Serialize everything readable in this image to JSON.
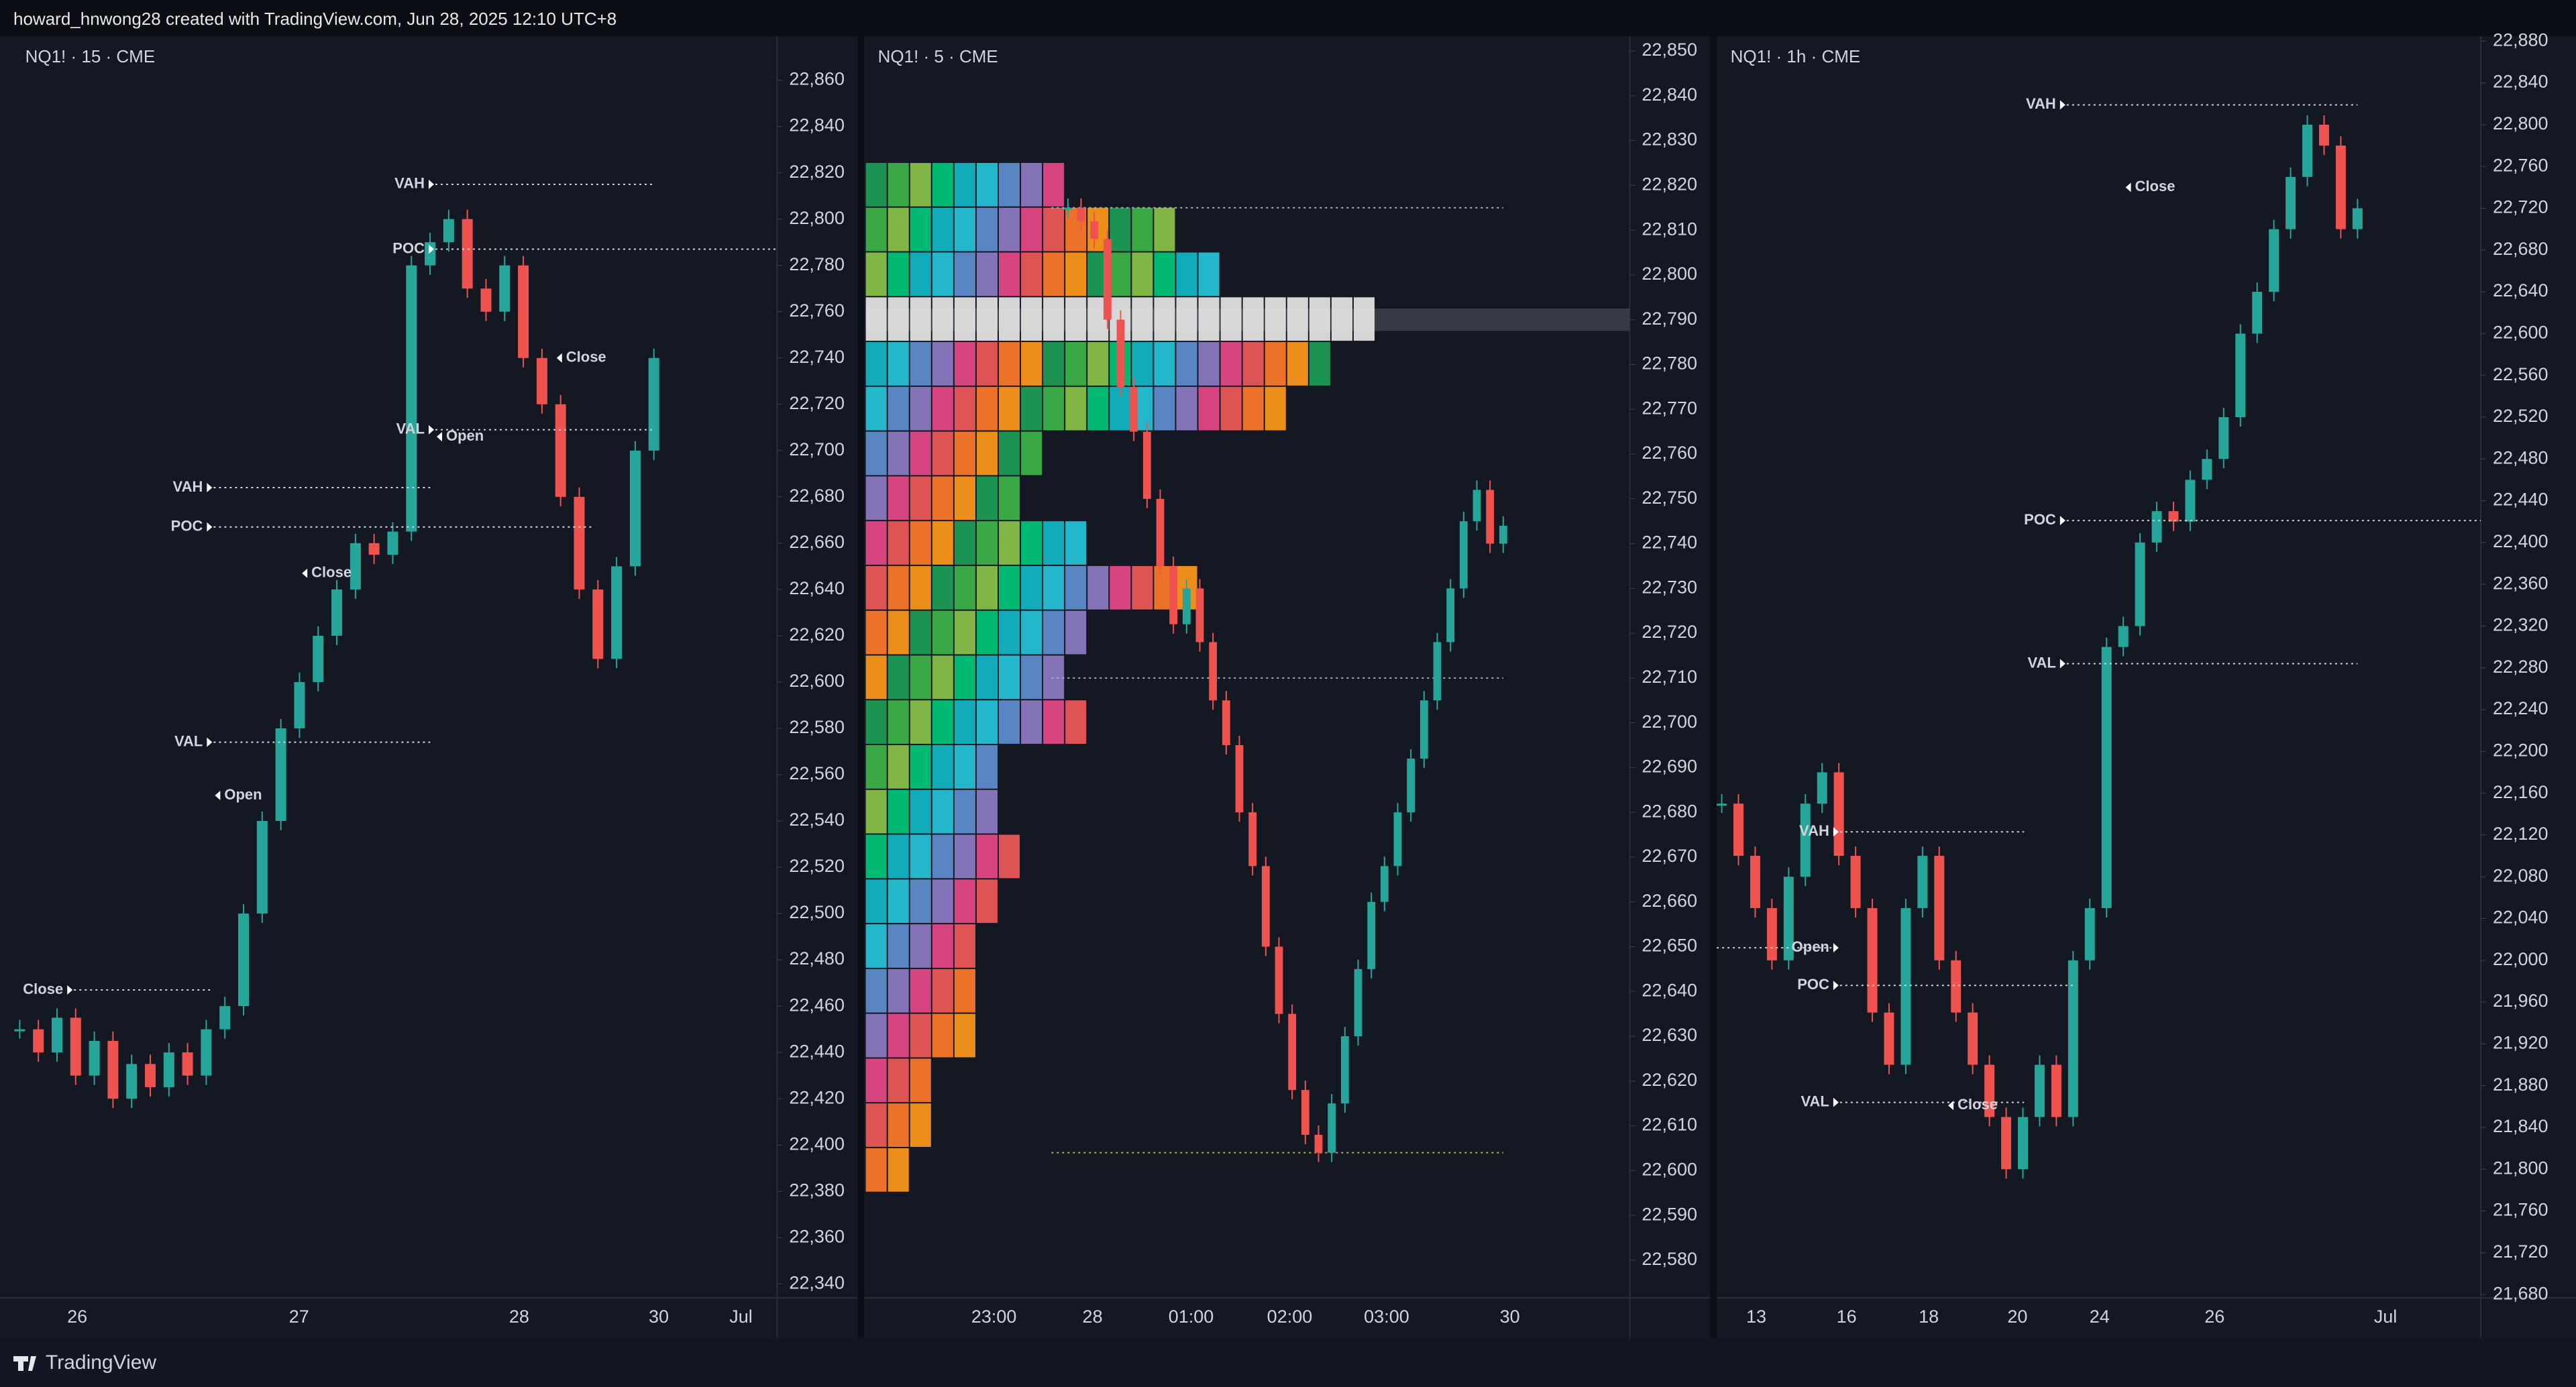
{
  "header": {
    "text": "howard_hnwong28 created with TradingView.com, Jun 28, 2025 12:10 UTC+8"
  },
  "footer": {
    "brand": "TradingView"
  },
  "chart_data": [
    {
      "type": "candlestick",
      "title": "NQ1! · 15 · CME",
      "up_color": "#26a69a",
      "down_color": "#ef5350",
      "ylim": [
        22334,
        22879
      ],
      "yticks": [
        {
          "value": 22340,
          "label": "22,340"
        },
        {
          "value": 22360,
          "label": "22,360"
        },
        {
          "value": 22380,
          "label": "22,380"
        },
        {
          "value": 22400,
          "label": "22,400"
        },
        {
          "value": 22420,
          "label": "22,420"
        },
        {
          "value": 22440,
          "label": "22,440"
        },
        {
          "value": 22460,
          "label": "22,460"
        },
        {
          "value": 22480,
          "label": "22,480"
        },
        {
          "value": 22500,
          "label": "22,500"
        },
        {
          "value": 22520,
          "label": "22,520"
        },
        {
          "value": 22540,
          "label": "22,540"
        },
        {
          "value": 22560,
          "label": "22,560"
        },
        {
          "value": 22580,
          "label": "22,580"
        },
        {
          "value": 22600,
          "label": "22,600"
        },
        {
          "value": 22620,
          "label": "22,620"
        },
        {
          "value": 22640,
          "label": "22,640"
        },
        {
          "value": 22660,
          "label": "22,660"
        },
        {
          "value": 22680,
          "label": "22,680"
        },
        {
          "value": 22700,
          "label": "22,700"
        },
        {
          "value": 22720,
          "label": "22,720"
        },
        {
          "value": 22740,
          "label": "22,740"
        },
        {
          "value": 22760,
          "label": "22,760"
        },
        {
          "value": 22780,
          "label": "22,780"
        },
        {
          "value": 22800,
          "label": "22,800"
        },
        {
          "value": 22820,
          "label": "22,820"
        },
        {
          "value": 22840,
          "label": "22,840"
        },
        {
          "value": 22860,
          "label": "22,860"
        }
      ],
      "x_tick_labels": [
        "26",
        "27",
        "28",
        "30",
        "Jul"
      ],
      "closes": [
        22450,
        22440,
        22455,
        22430,
        22445,
        22420,
        22435,
        22425,
        22440,
        22430,
        22450,
        22460,
        22500,
        22540,
        22580,
        22600,
        22620,
        22640,
        22660,
        22655,
        22665,
        22780,
        22790,
        22800,
        22770,
        22760,
        22780,
        22740,
        22720,
        22680,
        22640,
        22610,
        22650,
        22700,
        22740
      ],
      "levels": [
        {
          "label": "VAH",
          "value": 22815
        },
        {
          "label": "POC",
          "value": 22787
        },
        {
          "label": "Close",
          "value": 22740
        },
        {
          "label": "VAL",
          "value": 22709
        },
        {
          "label": "Open",
          "value": 22706
        },
        {
          "label": "VAH",
          "value": 22684
        },
        {
          "label": "POC",
          "value": 22667
        },
        {
          "label": "Close",
          "value": 22647
        },
        {
          "label": "VAL",
          "value": 22574
        },
        {
          "label": "Open",
          "value": 22551
        },
        {
          "label": "Close",
          "value": 22467
        }
      ]
    },
    {
      "type": "candlestick",
      "title": "NQ1! · 5 · CME",
      "up_color": "#26a69a",
      "down_color": "#ef5350",
      "ylim": [
        22571.6,
        22853.3
      ],
      "yticks": [
        {
          "value": 22580,
          "label": "22,580"
        },
        {
          "value": 22590,
          "label": "22,590"
        },
        {
          "value": 22600,
          "label": "22,600"
        },
        {
          "value": 22610,
          "label": "22,610"
        },
        {
          "value": 22620,
          "label": "22,620"
        },
        {
          "value": 22630,
          "label": "22,630"
        },
        {
          "value": 22640,
          "label": "22,640"
        },
        {
          "value": 22650,
          "label": "22,650"
        },
        {
          "value": 22660,
          "label": "22,660"
        },
        {
          "value": 22670,
          "label": "22,670"
        },
        {
          "value": 22680,
          "label": "22,680"
        },
        {
          "value": 22690,
          "label": "22,690"
        },
        {
          "value": 22700,
          "label": "22,700"
        },
        {
          "value": 22710,
          "label": "22,710"
        },
        {
          "value": 22720,
          "label": "22,720"
        },
        {
          "value": 22730,
          "label": "22,730"
        },
        {
          "value": 22740,
          "label": "22,740"
        },
        {
          "value": 22750,
          "label": "22,750"
        },
        {
          "value": 22760,
          "label": "22,760"
        },
        {
          "value": 22770,
          "label": "22,770"
        },
        {
          "value": 22780,
          "label": "22,780"
        },
        {
          "value": 22790,
          "label": "22,790"
        },
        {
          "value": 22800,
          "label": "22,800"
        },
        {
          "value": 22810,
          "label": "22,810"
        },
        {
          "value": 22820,
          "label": "22,820"
        },
        {
          "value": 22830,
          "label": "22,830"
        },
        {
          "value": 22840,
          "label": "22,840"
        },
        {
          "value": 22850,
          "label": "22,850"
        }
      ],
      "x_tick_labels": [
        "23:00",
        "28",
        "01:00",
        "02:00",
        "03:00",
        "30"
      ],
      "closes": [
        22815,
        22812,
        22808,
        22790,
        22775,
        22765,
        22750,
        22735,
        22722,
        22730,
        22718,
        22705,
        22695,
        22680,
        22668,
        22650,
        22635,
        22618,
        22608,
        22604,
        22615,
        22630,
        22645,
        22660,
        22668,
        22680,
        22692,
        22705,
        22718,
        22730,
        22745,
        22752,
        22740,
        22744
      ],
      "dotted_levels": [
        22815,
        22710,
        22604
      ],
      "profile": {
        "prices": [
          22820,
          22810,
          22800,
          22790,
          22780,
          22770,
          22760,
          22750,
          22740,
          22730,
          22720,
          22710,
          22700,
          22690,
          22680,
          22670,
          22660,
          22650,
          22640,
          22630,
          22620,
          22610,
          22600
        ],
        "counts": [
          9,
          14,
          16,
          23,
          21,
          19,
          8,
          7,
          10,
          15,
          10,
          9,
          10,
          6,
          6,
          7,
          6,
          5,
          5,
          5,
          3,
          3,
          2
        ],
        "poc": 22790,
        "palette": [
          "#1e9e58",
          "#3fb54a",
          "#8bc34a",
          "#00c87a",
          "#12b8c8",
          "#26c6da",
          "#5f8fd0",
          "#8e7cc3",
          "#e84a8a",
          "#f05a5a",
          "#ff7a2a",
          "#ff9a1a"
        ]
      }
    },
    {
      "type": "candlestick",
      "title": "NQ1! · 1h · CME",
      "up_color": "#26a69a",
      "down_color": "#ef5350",
      "ylim": [
        21676.9,
        22884.7
      ],
      "yticks": [
        {
          "value": 21680,
          "label": "21,680"
        },
        {
          "value": 21720,
          "label": "21,720"
        },
        {
          "value": 21760,
          "label": "21,760"
        },
        {
          "value": 21800,
          "label": "21,800"
        },
        {
          "value": 21840,
          "label": "21,840"
        },
        {
          "value": 21880,
          "label": "21,880"
        },
        {
          "value": 21920,
          "label": "21,920"
        },
        {
          "value": 21960,
          "label": "21,960"
        },
        {
          "value": 22000,
          "label": "22,000"
        },
        {
          "value": 22040,
          "label": "22,040"
        },
        {
          "value": 22080,
          "label": "22,080"
        },
        {
          "value": 22120,
          "label": "22,120"
        },
        {
          "value": 22160,
          "label": "22,160"
        },
        {
          "value": 22200,
          "label": "22,200"
        },
        {
          "value": 22240,
          "label": "22,240"
        },
        {
          "value": 22280,
          "label": "22,280"
        },
        {
          "value": 22320,
          "label": "22,320"
        },
        {
          "value": 22360,
          "label": "22,360"
        },
        {
          "value": 22400,
          "label": "22,400"
        },
        {
          "value": 22440,
          "label": "22,440"
        },
        {
          "value": 22480,
          "label": "22,480"
        },
        {
          "value": 22520,
          "label": "22,520"
        },
        {
          "value": 22560,
          "label": "22,560"
        },
        {
          "value": 22600,
          "label": "22,600"
        },
        {
          "value": 22640,
          "label": "22,640"
        },
        {
          "value": 22680,
          "label": "22,680"
        },
        {
          "value": 22720,
          "label": "22,720"
        },
        {
          "value": 22760,
          "label": "22,760"
        },
        {
          "value": 22800,
          "label": "22,800"
        },
        {
          "value": 22840,
          "label": "22,840"
        },
        {
          "value": 22880,
          "label": "22,880"
        }
      ],
      "x_tick_labels": [
        "13",
        "16",
        "18",
        "20",
        "24",
        "26",
        "Jul"
      ],
      "closes": [
        22150,
        22100,
        22050,
        22000,
        22080,
        22150,
        22180,
        22100,
        22050,
        21950,
        21900,
        22050,
        22100,
        22000,
        21950,
        21900,
        21850,
        21800,
        21850,
        21900,
        21850,
        22000,
        22050,
        22300,
        22320,
        22400,
        22430,
        22420,
        22460,
        22480,
        22520,
        22600,
        22640,
        22700,
        22750,
        22800,
        22780,
        22700,
        22720
      ],
      "levels": [
        {
          "label": "VAH",
          "value": 22819
        },
        {
          "label": "Close",
          "value": 22740
        },
        {
          "label": "POC",
          "value": 22421
        },
        {
          "label": "VAL",
          "value": 22284
        },
        {
          "label": "VAH",
          "value": 22123
        },
        {
          "label": "Open",
          "value": 22012
        },
        {
          "label": "POC",
          "value": 21976
        },
        {
          "label": "VAL",
          "value": 21864
        },
        {
          "label": "Close",
          "value": 21861
        }
      ]
    }
  ]
}
